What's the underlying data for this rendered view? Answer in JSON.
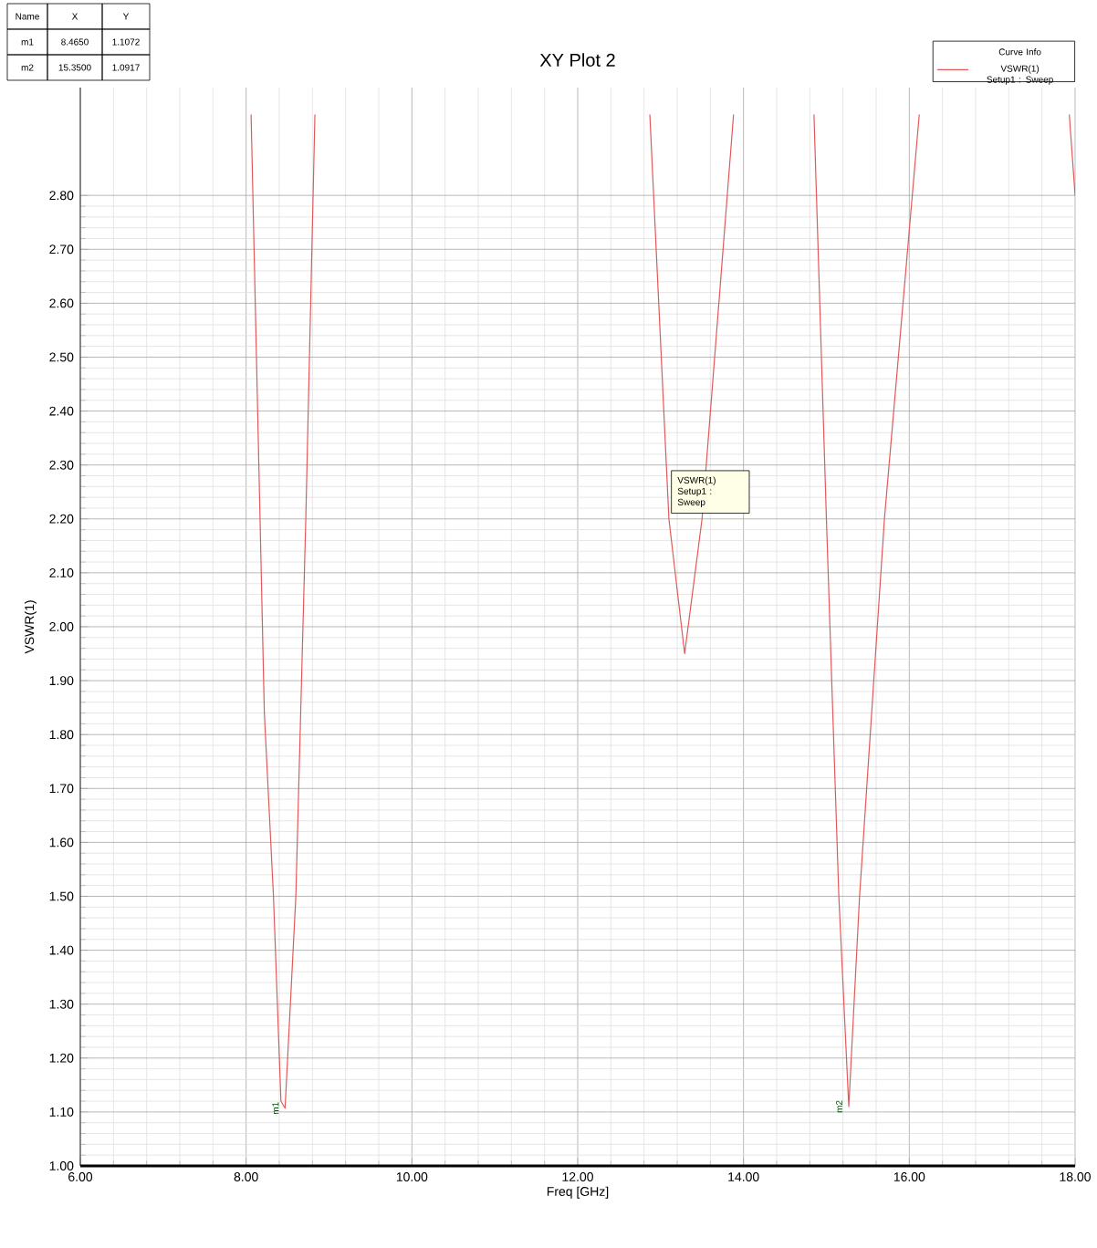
{
  "chart_data": {
    "type": "line",
    "title": "XY Plot 2",
    "xlabel": "Freq [GHz]",
    "ylabel": "VSWR(1)",
    "legend_title": "Curve Info",
    "legend": "top right",
    "grid": true,
    "xlim": [
      6,
      18
    ],
    "ylim": [
      1,
      3
    ],
    "xticks": [
      {
        "value": 6,
        "label": "6.00"
      },
      {
        "value": 8,
        "label": "8.00"
      },
      {
        "value": 10,
        "label": "10.00"
      },
      {
        "value": 12,
        "label": "12.00"
      },
      {
        "value": 14,
        "label": "14.00"
      },
      {
        "value": 16,
        "label": "16.00"
      },
      {
        "value": 18,
        "label": "18.00"
      }
    ],
    "yticks": [
      {
        "value": 1.0,
        "label": "1.00"
      },
      {
        "value": 1.1,
        "label": "1.10"
      },
      {
        "value": 1.2,
        "label": "1.20"
      },
      {
        "value": 1.3,
        "label": "1.30"
      },
      {
        "value": 1.4,
        "label": "1.40"
      },
      {
        "value": 1.5,
        "label": "1.50"
      },
      {
        "value": 1.6,
        "label": "1.60"
      },
      {
        "value": 1.7,
        "label": "1.70"
      },
      {
        "value": 1.8,
        "label": "1.80"
      },
      {
        "value": 1.9,
        "label": "1.90"
      },
      {
        "value": 2.0,
        "label": "2.00"
      },
      {
        "value": 2.1,
        "label": "2.10"
      },
      {
        "value": 2.2,
        "label": "2.20"
      },
      {
        "value": 2.3,
        "label": "2.30"
      },
      {
        "value": 2.4,
        "label": "2.40"
      },
      {
        "value": 2.5,
        "label": "2.50"
      },
      {
        "value": 2.6,
        "label": "2.60"
      },
      {
        "value": 2.7,
        "label": "2.70"
      },
      {
        "value": 2.8,
        "label": "2.80"
      }
    ],
    "series": [
      {
        "name": "VSWR(1) Setup1 : Sweep",
        "color": "#e05a5a",
        "x": [
          8.06,
          8.22,
          8.33,
          8.42,
          8.47,
          8.6,
          8.72,
          8.83,
          11.0,
          12.87,
          13.1,
          13.29,
          13.5,
          13.88,
          14.4,
          14.85,
          15.0,
          15.15,
          15.27,
          15.4,
          15.7,
          16.12,
          17.0,
          17.93,
          18.0
        ],
        "values": [
          2.95,
          1.84,
          1.5,
          1.12,
          1.107,
          1.5,
          2.2,
          2.95,
          null,
          2.95,
          2.2,
          1.95,
          2.2,
          2.95,
          null,
          2.95,
          2.2,
          1.5,
          1.11,
          1.5,
          2.2,
          2.95,
          null,
          2.95,
          2.8
        ]
      }
    ],
    "annotations": [
      "Name",
      "X",
      "Y",
      "m1",
      "8.4650",
      "1.1072",
      "m2",
      "15.3500",
      "1.0917",
      {
        "text": "m1",
        "x": 8.47,
        "y": 1.107
      },
      {
        "text": "m2",
        "x": 15.27,
        "y": 1.11
      },
      {
        "text": "VSWR(1) Setup1 : Sweep",
        "x": 13.6,
        "y": 2.25
      }
    ]
  }
}
